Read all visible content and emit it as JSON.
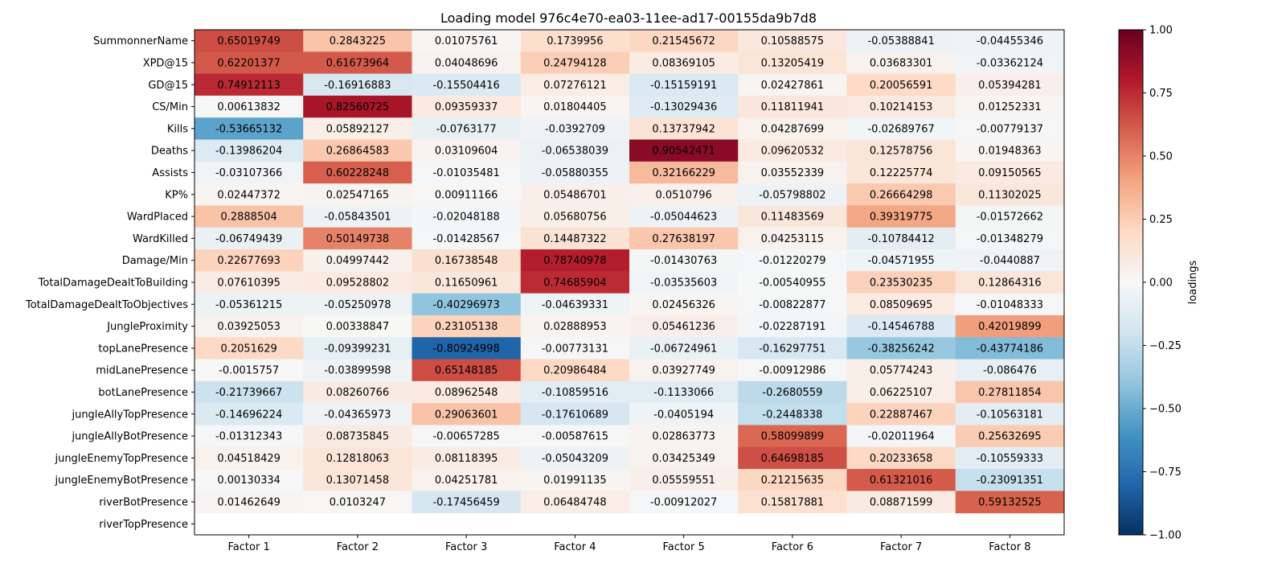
{
  "chart_data": {
    "type": "heatmap",
    "title": "Loading model 976c4e70-ea03-11ee-ad17-00155da9b7d8",
    "x_categories": [
      "Factor 1",
      "Factor 2",
      "Factor 3",
      "Factor 4",
      "Factor 5",
      "Factor 6",
      "Factor 7",
      "Factor 8"
    ],
    "y_categories": [
      "SummonnerName",
      "XPD@15",
      "GD@15",
      "CS/Min",
      "Kills",
      "Deaths",
      "Assists",
      "KP%",
      "WardPlaced",
      "WardKilled",
      "Damage/Min",
      "TotalDamageDealtToBuilding",
      "TotalDamageDealtToObjectives",
      "JungleProximity",
      "topLanePresence",
      "midLanePresence",
      "botLanePresence",
      "jungleAllyTopPresence",
      "jungleAllyBotPresence",
      "jungleEnemyTopPresence",
      "jungleEnemyBotPresence",
      "riverBotPresence",
      "riverTopPresence"
    ],
    "values": [
      [
        "0.65019749",
        "0.2843225",
        "0.01075761",
        "0.1739956",
        "0.21545672",
        "0.10588575",
        "-0.05388841",
        "-0.04455346"
      ],
      [
        "0.62201377",
        "0.61673964",
        "0.04048696",
        "0.24794128",
        "0.08369105",
        "0.13205419",
        "0.03683301",
        "-0.03362124"
      ],
      [
        "0.74912113",
        "-0.16916883",
        "-0.15504416",
        "0.07276121",
        "-0.15159191",
        "0.02427861",
        "0.20056591",
        "0.05394281"
      ],
      [
        "0.00613832",
        "0.82560725",
        "0.09359337",
        "0.01804405",
        "-0.13029436",
        "0.11811941",
        "0.10214153",
        "0.01252331"
      ],
      [
        "-0.53665132",
        "0.05892127",
        "-0.0763177",
        "-0.0392709",
        "0.13737942",
        "0.04287699",
        "-0.02689767",
        "-0.00779137"
      ],
      [
        "-0.13986204",
        "0.26864583",
        "0.03109604",
        "-0.06538039",
        "0.90542471",
        "0.09620532",
        "0.12578756",
        "0.01948363"
      ],
      [
        "-0.03107366",
        "0.60228248",
        "-0.01035481",
        "-0.05880355",
        "0.32166229",
        "0.03552339",
        "0.12225774",
        "0.09150565"
      ],
      [
        "0.02447372",
        "0.02547165",
        "0.00911166",
        "0.05486701",
        "0.0510796",
        "-0.05798802",
        "0.26664298",
        "0.11302025"
      ],
      [
        "0.2888504",
        "-0.05843501",
        "-0.02048188",
        "0.05680756",
        "-0.05044623",
        "0.11483569",
        "0.39319775",
        "-0.01572662"
      ],
      [
        "-0.06749439",
        "0.50149738",
        "-0.01428567",
        "0.14487322",
        "0.27638197",
        "0.04253115",
        "-0.10784412",
        "-0.01348279"
      ],
      [
        "0.22677693",
        "0.04997442",
        "0.16738548",
        "0.78740978",
        "-0.01430763",
        "-0.01220279",
        "-0.04571955",
        "-0.0440887"
      ],
      [
        "0.07610395",
        "0.09528802",
        "0.11650961",
        "0.74685904",
        "-0.03535603",
        "-0.00540955",
        "0.23530235",
        "0.12864316"
      ],
      [
        "-0.05361215",
        "-0.05250978",
        "-0.40296973",
        "-0.04639331",
        "0.02456326",
        "-0.00822877",
        "0.08509695",
        "-0.01048333"
      ],
      [
        "0.03925053",
        "0.00338847",
        "0.23105138",
        "0.02888953",
        "0.05461236",
        "-0.02287191",
        "-0.14546788",
        "0.42019899"
      ],
      [
        "0.2051629",
        "-0.09399231",
        "-0.80924998",
        "-0.00773131",
        "-0.06724961",
        "-0.16297751",
        "-0.38256242",
        "-0.43774186"
      ],
      [
        "-0.0015757",
        "-0.03899598",
        "0.65148185",
        "0.20986484",
        "0.03927749",
        "-0.00912986",
        "0.05774243",
        "-0.086476"
      ],
      [
        "-0.21739667",
        "0.08260766",
        "0.08962548",
        "-0.10859516",
        "-0.1133066",
        "-0.2680559",
        "0.06225107",
        "0.27811854"
      ],
      [
        "-0.14696224",
        "-0.04365973",
        "0.29063601",
        "-0.17610689",
        "-0.0405194",
        "-0.2448338",
        "0.22887467",
        "-0.10563181"
      ],
      [
        "-0.01312343",
        "0.08735845",
        "-0.00657285",
        "-0.00587615",
        "0.02863773",
        "0.58099899",
        "-0.02011964",
        "0.25632695"
      ],
      [
        "0.04518429",
        "0.12818063",
        "0.08118395",
        "-0.05043209",
        "0.03425349",
        "0.64698185",
        "0.20233658",
        "-0.10559333"
      ],
      [
        "0.00130334",
        "0.13071458",
        "0.04251781",
        "0.01991135",
        "0.05559551",
        "0.21215635",
        "0.61321016",
        "-0.23091351"
      ],
      [
        "0.01462649",
        "0.0103247",
        "-0.17456459",
        "0.06484748",
        "-0.00912027",
        "0.15817881",
        "0.08871599",
        "0.59132525"
      ],
      null
    ],
    "colorbar": {
      "label": "loadings",
      "range": [
        -1.0,
        1.0
      ],
      "ticks": [
        "1.00",
        "0.75",
        "0.50",
        "0.25",
        "0.00",
        "−0.25",
        "−0.50",
        "−0.75",
        "−1.00"
      ],
      "colormap": "RdBu_r"
    }
  }
}
